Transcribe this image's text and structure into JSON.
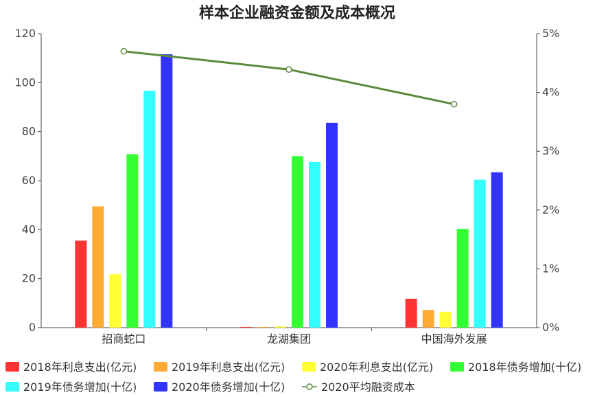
{
  "chart_data": {
    "type": "bar",
    "title": "样本企业融资金额及成本概况",
    "categories": [
      "招商蛇口",
      "龙湖集团",
      "中国海外发展"
    ],
    "ylim": [
      0,
      120
    ],
    "y_ticks": [
      "0",
      "20",
      "40",
      "60",
      "80",
      "100",
      "120"
    ],
    "y2lim": [
      0,
      5
    ],
    "y2_ticks": [
      "0%",
      "1%",
      "2%",
      "3%",
      "4%",
      "5%"
    ],
    "series": [
      {
        "name": "2018年利息支出(亿元)",
        "type": "bar",
        "axis": "left",
        "color": "#ff3333",
        "values": [
          35.5,
          0.3,
          11.8
        ]
      },
      {
        "name": "2019年利息支出(亿元)",
        "type": "bar",
        "axis": "left",
        "color": "#ffaa33",
        "values": [
          49.5,
          0.3,
          7.2
        ]
      },
      {
        "name": "2020年利息支出(亿元)",
        "type": "bar",
        "axis": "left",
        "color": "#ffff33",
        "values": [
          21.8,
          0.5,
          6.5
        ]
      },
      {
        "name": "2018年债务增加(十亿)",
        "type": "bar",
        "axis": "left",
        "color": "#33ff33",
        "values": [
          70.8,
          70.0,
          40.3
        ]
      },
      {
        "name": "2019年债务增加(十亿)",
        "type": "bar",
        "axis": "left",
        "color": "#33ffff",
        "values": [
          96.7,
          67.6,
          60.4
        ]
      },
      {
        "name": "2020年债务增加(十亿)",
        "type": "bar",
        "axis": "left",
        "color": "#3333ff",
        "values": [
          111.6,
          83.6,
          63.4
        ]
      },
      {
        "name": "2020平均融资成本",
        "type": "line",
        "axis": "right",
        "color": "#5b8a3c",
        "values": [
          4.7,
          4.39,
          3.8
        ]
      }
    ],
    "legend_position": "bottom",
    "grid": false
  }
}
